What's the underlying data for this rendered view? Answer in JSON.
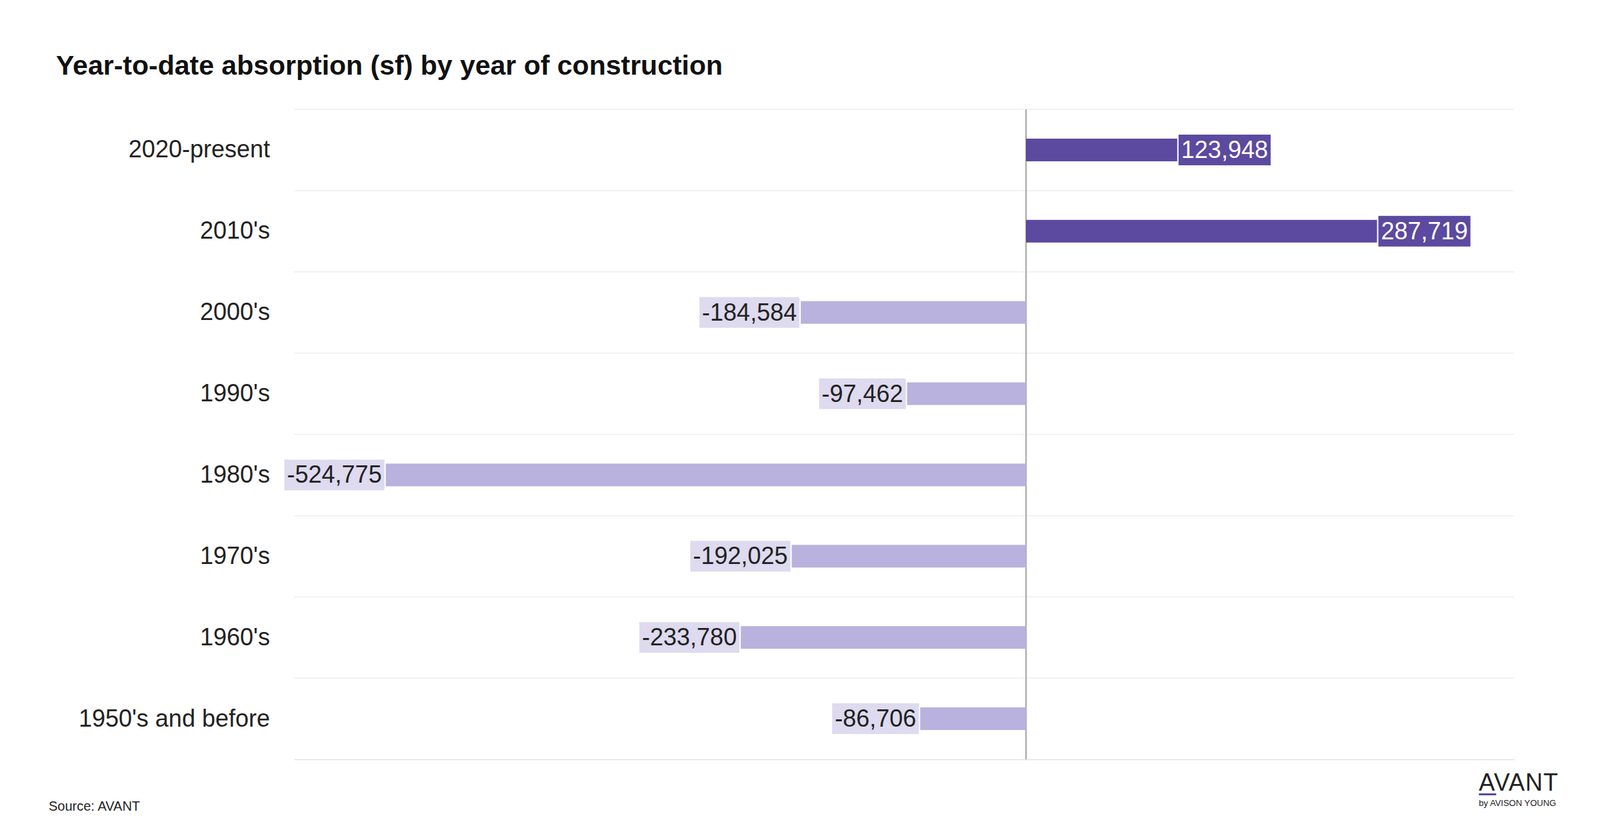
{
  "chart_data": {
    "type": "bar",
    "orientation": "horizontal",
    "title": "Year-to-date absorption (sf) by year of construction",
    "categories": [
      "2020-present",
      "2010's",
      "2000's",
      "1990's",
      "1980's",
      "1970's",
      "1960's",
      "1950's and before"
    ],
    "values": [
      123948,
      287719,
      -184584,
      -97462,
      -524775,
      -192025,
      -233780,
      -86706
    ],
    "value_labels": [
      "123,948",
      "287,719",
      "-184,584",
      "-97,462",
      "-524,775",
      "-192,025",
      "-233,780",
      "-86,706"
    ],
    "colors": [
      "#5b4a9f",
      "#5b4a9f",
      "#b9b1de",
      "#b9b1de",
      "#b9b1de",
      "#b9b1de",
      "#b9b1de",
      "#b9b1de"
    ],
    "xlim": [
      -600000,
      400000
    ],
    "xticks": [
      0
    ],
    "tick_labels": "y",
    "data_labels": true,
    "grid": false,
    "source": "Source: AVANT",
    "logo": {
      "text": "AVANT",
      "subtitle": "by AVISON YOUNG"
    }
  }
}
